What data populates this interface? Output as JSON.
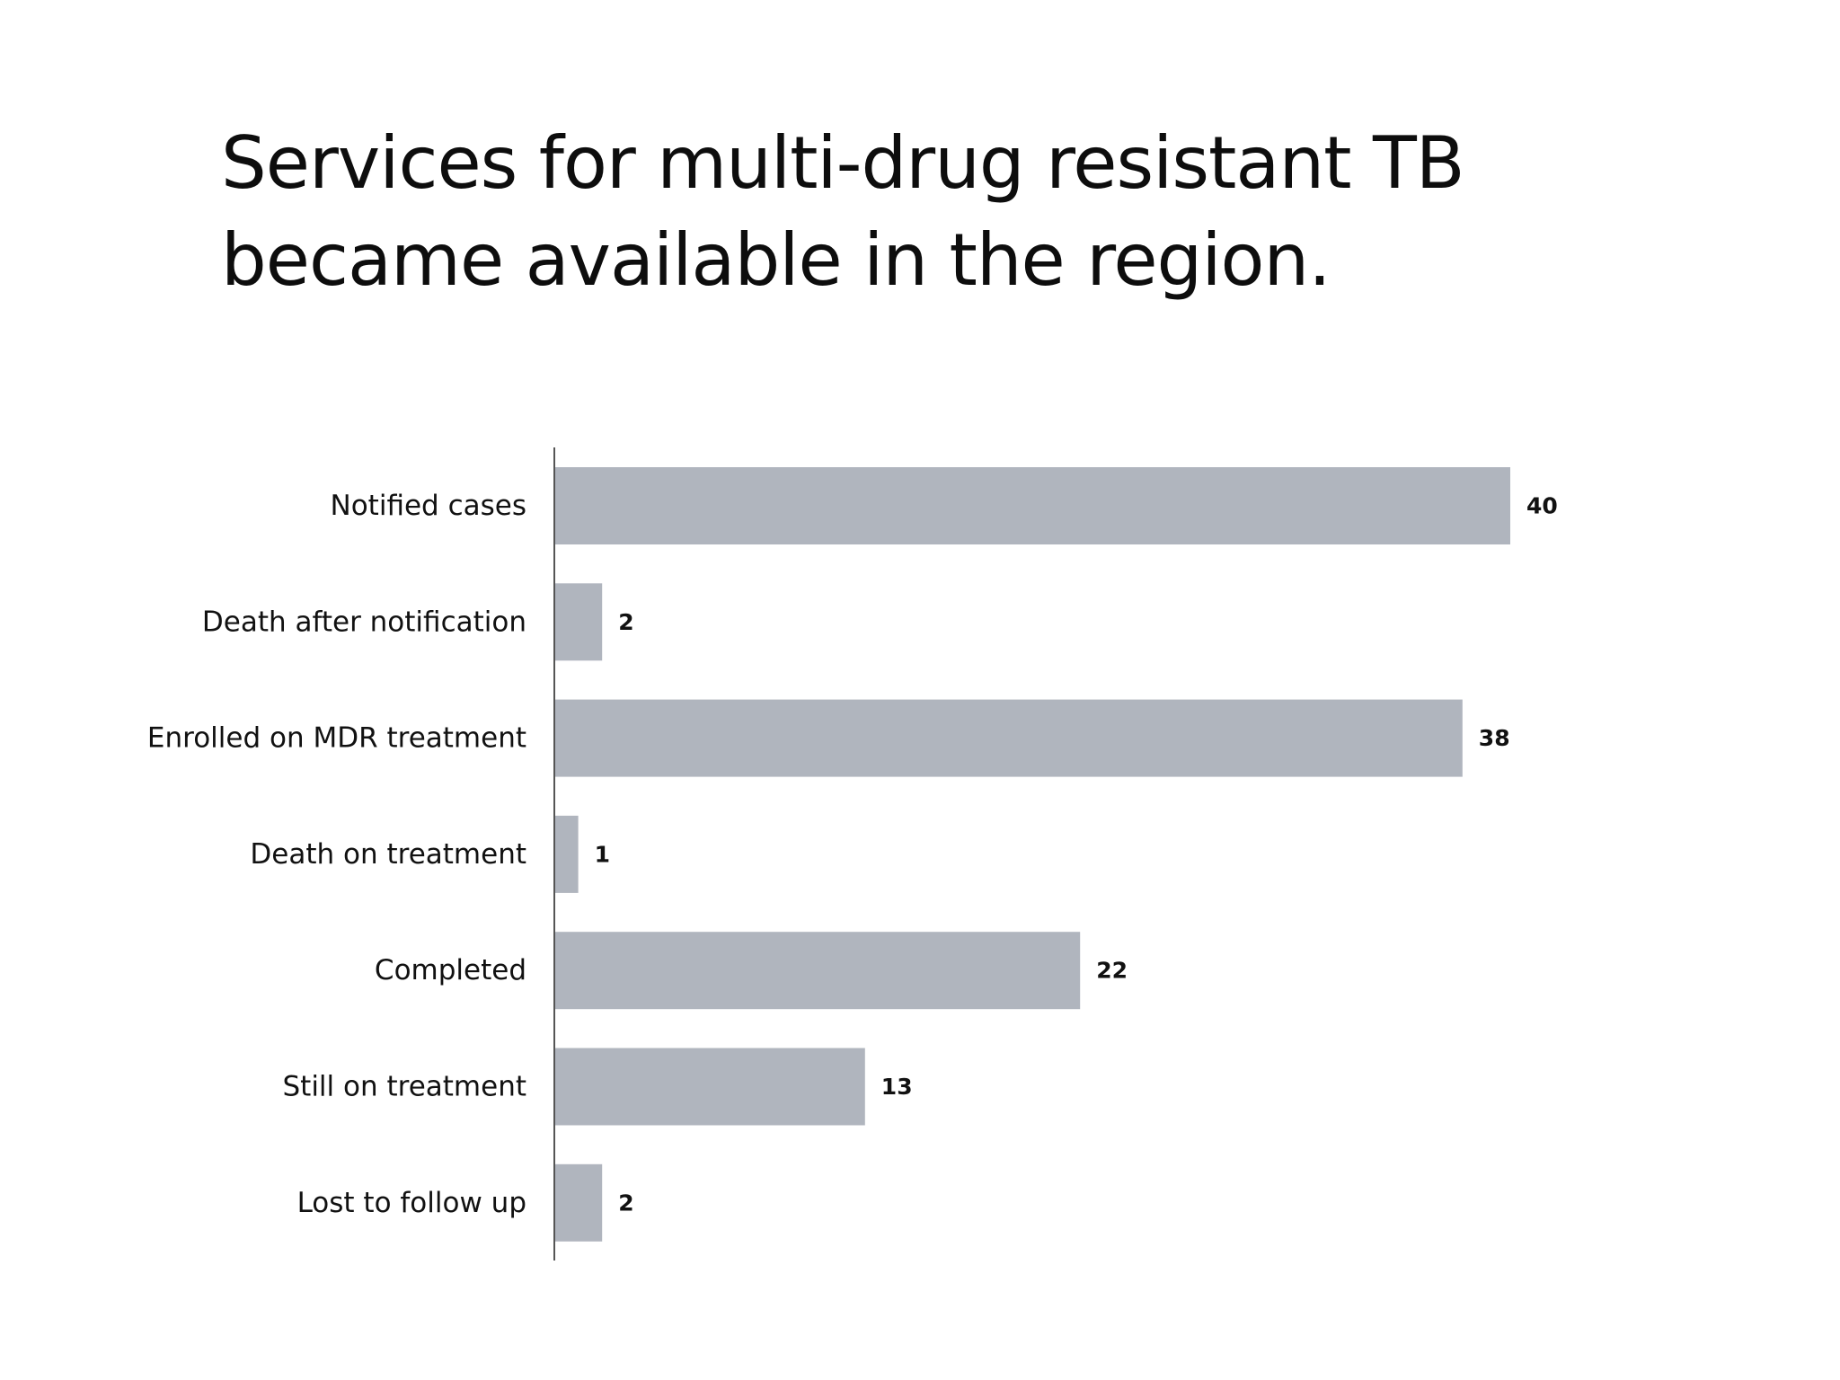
{
  "slide": {
    "title_line1": "Services for multi-drug resistant TB",
    "title_line2": "became available in the region."
  },
  "chart_data": {
    "type": "bar",
    "orientation": "horizontal",
    "categories": [
      "Notified cases",
      "Death after notification",
      "Enrolled on MDR treatment",
      "Death on treatment",
      "Completed",
      "Still on treatment",
      "Lost to follow up"
    ],
    "values": [
      40,
      2,
      38,
      1,
      22,
      13,
      2
    ],
    "xlim": [
      0,
      40
    ],
    "grid": false,
    "data_labels": true,
    "bar_color": "#b0b5be",
    "axis_color": "#555555"
  }
}
